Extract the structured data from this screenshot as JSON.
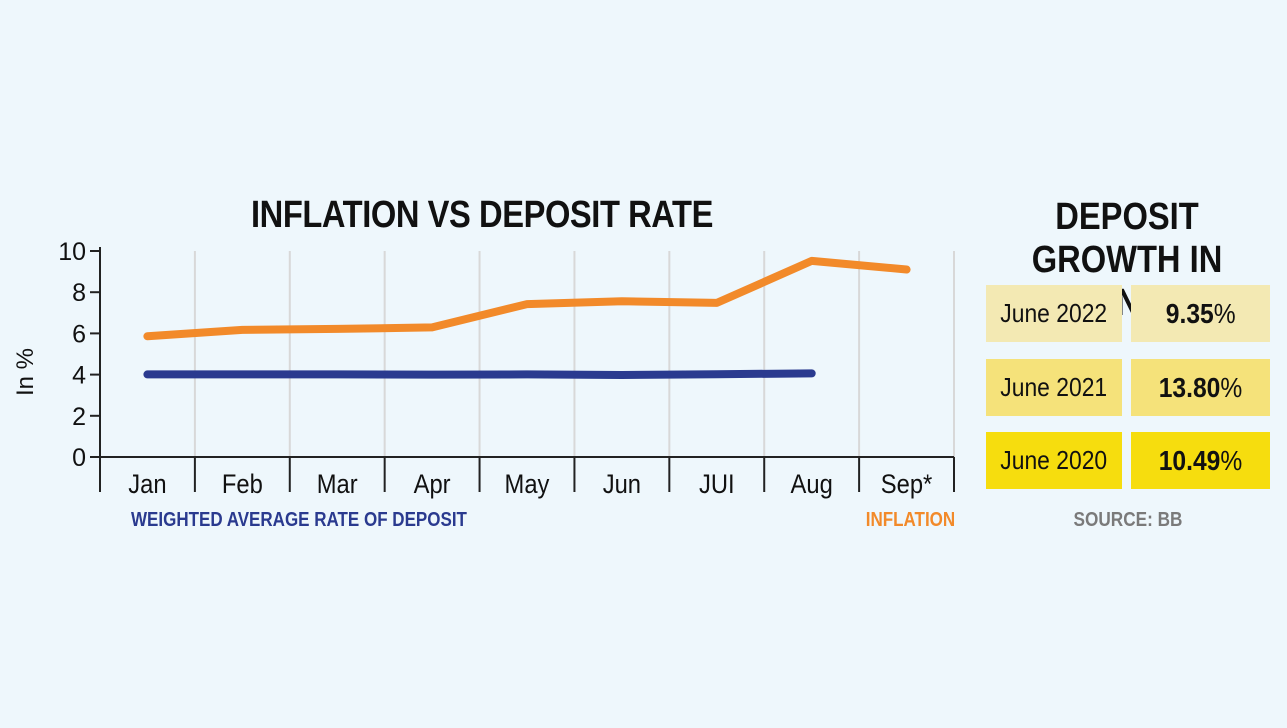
{
  "chart_data": [
    {
      "type": "line",
      "title": "INFLATION VS DEPOSIT RATE",
      "xlabel": "",
      "ylabel": "In %",
      "categories": [
        "Jan",
        "Feb",
        "Mar",
        "Apr",
        "May",
        "Jun",
        "JUI",
        "Aug",
        "Sep*"
      ],
      "ylim": [
        0,
        10
      ],
      "yticks": [
        "0",
        "2",
        "4",
        "6",
        "8",
        "10"
      ],
      "grid": "vertical",
      "series": [
        {
          "name": "WEIGHTED AVERAGE RATE OF DEPOSIT",
          "color": "#2a3a8f",
          "values": [
            4.01,
            4.01,
            4.01,
            4.0,
            4.01,
            3.98,
            4.02,
            4.06,
            null
          ]
        },
        {
          "name": "INFLATION",
          "color": "#f28a2a",
          "values": [
            5.86,
            6.17,
            6.22,
            6.29,
            7.42,
            7.56,
            7.48,
            9.52,
            9.1
          ]
        }
      ]
    },
    {
      "type": "table",
      "title": "DEPOSIT GROWTH IN BANKS",
      "rows": [
        {
          "label": "June 2022",
          "value": "9.35",
          "unit": "%",
          "label_bg": "#f3e9b3",
          "value_bg": "#f3e9b3"
        },
        {
          "label": "June 2021",
          "value": "13.80",
          "unit": "%",
          "label_bg": "#f5e27a",
          "value_bg": "#f5e27a"
        },
        {
          "label": "June 2020",
          "value": "10.49",
          "unit": "%",
          "label_bg": "#f6dd0e",
          "value_bg": "#f6dd0e"
        }
      ],
      "source": "SOURCE: BB"
    }
  ]
}
